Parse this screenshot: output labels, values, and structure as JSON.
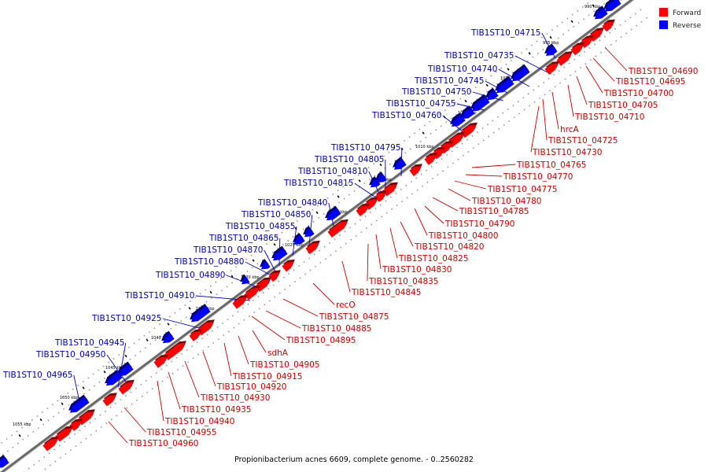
{
  "caption": "Propionibacterium acnes 6609, complete genome. - 0..2560282",
  "legend": {
    "forward_label": "Forward",
    "reverse_label": "Reverse",
    "forward_color": "#ff0000",
    "reverse_color": "#0000ff"
  },
  "kbp_ticks": [
    "990 kbp",
    "995 kbp",
    "1000 kbp",
    "1005 kbp",
    "1010 kbp",
    "1015 kbp",
    "1020 kbp",
    "1025 kbp",
    "1030 kbp",
    "1035 kbp",
    "1040 kbp",
    "1045 kbp",
    "1050 kbp",
    "1055 kbp"
  ],
  "reverse_genes": [
    "TIB1ST10_04715",
    "TIB1ST10_04735",
    "TIB1ST10_04740",
    "TIB1ST10_04745",
    "TIB1ST10_04750",
    "TIB1ST10_04755",
    "TIB1ST10_04760",
    "TIB1ST10_04795",
    "TIB1ST10_04805",
    "TIB1ST10_04810",
    "TIB1ST10_04815",
    "TIB1ST10_04840",
    "TIB1ST10_04850",
    "TIB1ST10_04855",
    "TIB1ST10_04865",
    "TIB1ST10_04870",
    "TIB1ST10_04880",
    "TIB1ST10_04890",
    "TIB1ST10_04910",
    "TIB1ST10_04925",
    "TIB1ST10_04945",
    "TIB1ST10_04950",
    "TIB1ST10_04965"
  ],
  "forward_genes": [
    "TIB1ST10_04690",
    "TIB1ST10_04695",
    "TIB1ST10_04700",
    "TIB1ST10_04705",
    "TIB1ST10_04710",
    "hrcA",
    "TIB1ST10_04725",
    "TIB1ST10_04730",
    "TIB1ST10_04765",
    "TIB1ST10_04770",
    "TIB1ST10_04775",
    "TIB1ST10_04780",
    "TIB1ST10_04785",
    "TIB1ST10_04790",
    "TIB1ST10_04800",
    "TIB1ST10_04820",
    "TIB1ST10_04825",
    "TIB1ST10_04830",
    "TIB1ST10_04835",
    "TIB1ST10_04845",
    "recO",
    "TIB1ST10_04875",
    "TIB1ST10_04885",
    "TIB1ST10_04895",
    "sdhA",
    "TIB1ST10_04905",
    "TIB1ST10_04915",
    "TIB1ST10_04920",
    "TIB1ST10_04930",
    "TIB1ST10_04935",
    "TIB1ST10_04940",
    "TIB1ST10_04955",
    "TIB1ST10_04960"
  ]
}
